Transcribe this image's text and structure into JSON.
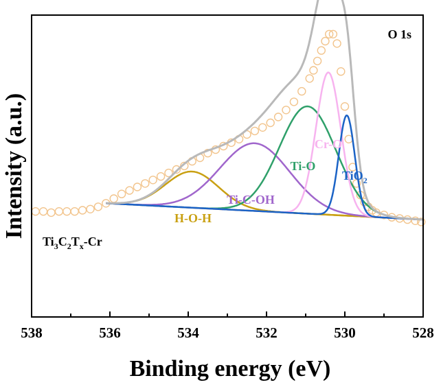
{
  "chart_data": {
    "type": "line",
    "title": "",
    "panel_label": "O 1s",
    "sample_label": {
      "base": "Ti",
      "s1": "3",
      "mid": "C",
      "s2": "2",
      "mid2": "T",
      "s3": "x",
      "tail": "-Cr"
    },
    "xlabel": "Binding energy (eV)",
    "ylabel": "Intensity (a.u.)",
    "xlim": [
      538,
      528
    ],
    "ylim": [
      0,
      1
    ],
    "x_ticks": [
      538,
      536,
      534,
      532,
      530,
      528
    ],
    "x_tick_labels": [
      "538",
      "536",
      "534",
      "532",
      "530",
      "528"
    ],
    "colors": {
      "data": "#f2c48c",
      "envelope": "#b9b9b9",
      "background": "#c49a14",
      "HOH": "#c9a012",
      "TiCOH": "#a066cc",
      "TiO": "#2fa06a",
      "CrO": "#f7b3ef",
      "TiO2": "#1b63c6"
    },
    "baseline": {
      "x": [
        536.1,
        528.0
      ],
      "y": [
        0.305,
        0.235
      ]
    },
    "peaks": [
      {
        "name": "H-O-H",
        "label": "H-O-H",
        "center": 533.9,
        "amplitude": 0.155,
        "fwhm": 1.6,
        "color_key": "HOH"
      },
      {
        "name": "Ti-C-OH",
        "label": "Ti-C-OH",
        "center": 532.3,
        "amplitude": 0.29,
        "fwhm": 2.1,
        "color_key": "TiCOH"
      },
      {
        "name": "Ti-O",
        "label": "Ti-O",
        "center": 530.95,
        "amplitude": 0.46,
        "fwhm": 1.7,
        "color_key": "TiO"
      },
      {
        "name": "Cr-O",
        "label": "Cr-O",
        "center": 530.42,
        "amplitude": 0.61,
        "fwhm": 0.75,
        "color_key": "CrO"
      },
      {
        "name": "TiO2",
        "label": "TiO",
        "label_sub": "2",
        "center": 529.95,
        "amplitude": 0.43,
        "fwhm": 0.48,
        "color_key": "TiO2"
      }
    ],
    "experimental_data": {
      "x": [
        537.9,
        537.7,
        537.5,
        537.3,
        537.1,
        536.9,
        536.7,
        536.5,
        536.3,
        536.1,
        535.9,
        535.7,
        535.5,
        535.3,
        535.1,
        534.9,
        534.7,
        534.5,
        534.3,
        534.1,
        533.9,
        533.7,
        533.5,
        533.3,
        533.1,
        532.9,
        532.7,
        532.5,
        532.3,
        532.1,
        531.9,
        531.7,
        531.5,
        531.3,
        531.1,
        530.9,
        530.8,
        530.7,
        530.6,
        530.5,
        530.4,
        530.3,
        530.2,
        530.1,
        530.0,
        529.9,
        529.8,
        529.7,
        529.6,
        529.5,
        529.4,
        529.3,
        529.2,
        529.0,
        528.8,
        528.6,
        528.4,
        528.2,
        528.05
      ],
      "y": [
        0.27,
        0.27,
        0.265,
        0.27,
        0.27,
        0.27,
        0.275,
        0.28,
        0.29,
        0.305,
        0.325,
        0.345,
        0.36,
        0.375,
        0.39,
        0.405,
        0.42,
        0.435,
        0.45,
        0.465,
        0.485,
        0.5,
        0.52,
        0.535,
        0.55,
        0.565,
        0.58,
        0.6,
        0.615,
        0.63,
        0.65,
        0.675,
        0.705,
        0.74,
        0.785,
        0.84,
        0.875,
        0.915,
        0.96,
        1.0,
        1.03,
        1.03,
        0.99,
        0.87,
        0.72,
        0.58,
        0.46,
        0.39,
        0.34,
        0.31,
        0.29,
        0.275,
        0.265,
        0.255,
        0.245,
        0.24,
        0.235,
        0.23,
        0.225
      ]
    }
  }
}
